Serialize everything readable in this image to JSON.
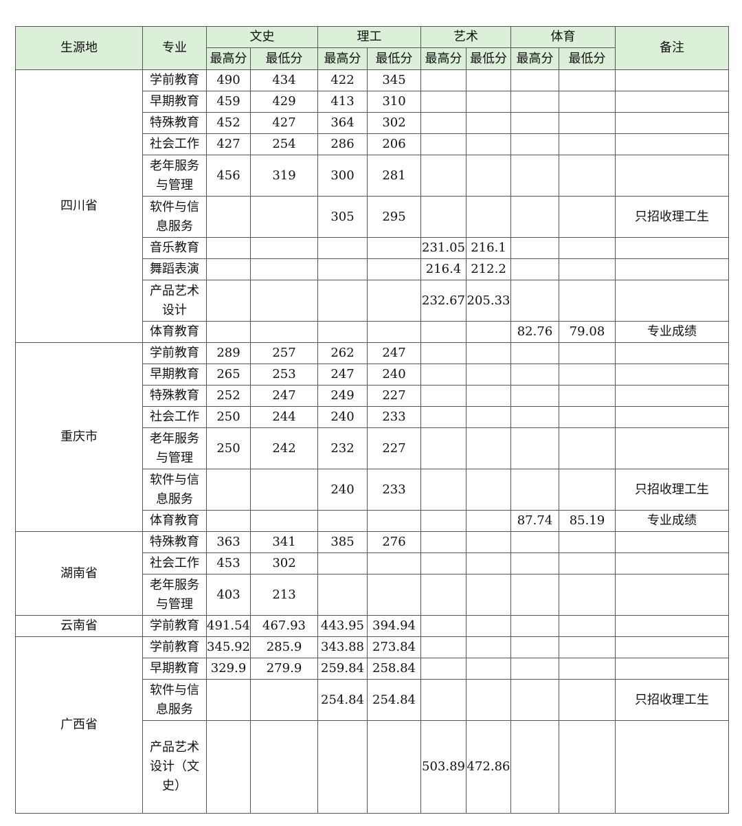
{
  "header": {
    "region": "生源地",
    "major": "专业",
    "groups": [
      "文史",
      "理工",
      "艺术",
      "体育"
    ],
    "note": "备注",
    "sub": [
      "最高分",
      "最低分",
      "最高分",
      "最低分",
      "最高分",
      "最低分",
      "最高分",
      "最低分"
    ]
  },
  "colors": {
    "header_bg": "#dcefd9",
    "border": "#555555"
  },
  "regions": [
    {
      "name": "四川省",
      "rows": [
        {
          "major": "学前教育",
          "scores": [
            "490",
            "434",
            "422",
            "345",
            "",
            "",
            "",
            ""
          ],
          "note": ""
        },
        {
          "major": "早期教育",
          "scores": [
            "459",
            "429",
            "413",
            "310",
            "",
            "",
            "",
            ""
          ],
          "note": ""
        },
        {
          "major": "特殊教育",
          "scores": [
            "452",
            "427",
            "364",
            "302",
            "",
            "",
            "",
            ""
          ],
          "note": ""
        },
        {
          "major": "社会工作",
          "scores": [
            "427",
            "254",
            "286",
            "206",
            "",
            "",
            "",
            ""
          ],
          "note": ""
        },
        {
          "major": "老年服务与管理",
          "scores": [
            "456",
            "319",
            "300",
            "281",
            "",
            "",
            "",
            ""
          ],
          "note": ""
        },
        {
          "major": "软件与信息服务",
          "scores": [
            "",
            "",
            "305",
            "295",
            "",
            "",
            "",
            ""
          ],
          "note": "只招收理工生"
        },
        {
          "major": "音乐教育",
          "scores": [
            "",
            "",
            "",
            "",
            "231.05",
            "216.1",
            "",
            ""
          ],
          "note": ""
        },
        {
          "major": "舞蹈表演",
          "scores": [
            "",
            "",
            "",
            "",
            "216.4",
            "212.2",
            "",
            ""
          ],
          "note": ""
        },
        {
          "major": "产品艺术设计",
          "scores": [
            "",
            "",
            "",
            "",
            "232.67",
            "205.33",
            "",
            ""
          ],
          "note": ""
        },
        {
          "major": "体育教育",
          "scores": [
            "",
            "",
            "",
            "",
            "",
            "",
            "82.76",
            "79.08"
          ],
          "note": "专业成绩"
        }
      ]
    },
    {
      "name": "重庆市",
      "rows": [
        {
          "major": "学前教育",
          "scores": [
            "289",
            "257",
            "262",
            "247",
            "",
            "",
            "",
            ""
          ],
          "note": ""
        },
        {
          "major": "早期教育",
          "scores": [
            "265",
            "253",
            "247",
            "240",
            "",
            "",
            "",
            ""
          ],
          "note": ""
        },
        {
          "major": "特殊教育",
          "scores": [
            "252",
            "247",
            "249",
            "227",
            "",
            "",
            "",
            ""
          ],
          "note": ""
        },
        {
          "major": "社会工作",
          "scores": [
            "250",
            "244",
            "240",
            "233",
            "",
            "",
            "",
            ""
          ],
          "note": ""
        },
        {
          "major": "老年服务与管理",
          "scores": [
            "250",
            "242",
            "232",
            "227",
            "",
            "",
            "",
            ""
          ],
          "note": ""
        },
        {
          "major": "软件与信息服务",
          "scores": [
            "",
            "",
            "240",
            "233",
            "",
            "",
            "",
            ""
          ],
          "note": "只招收理工生"
        },
        {
          "major": "体育教育",
          "scores": [
            "",
            "",
            "",
            "",
            "",
            "",
            "87.74",
            "85.19"
          ],
          "note": "专业成绩"
        }
      ]
    },
    {
      "name": "湖南省",
      "rows": [
        {
          "major": "特殊教育",
          "scores": [
            "363",
            "341",
            "385",
            "276",
            "",
            "",
            "",
            ""
          ],
          "note": ""
        },
        {
          "major": "社会工作",
          "scores": [
            "453",
            "302",
            "",
            "",
            "",
            "",
            "",
            ""
          ],
          "note": ""
        },
        {
          "major": "老年服务与管理",
          "scores": [
            "403",
            "213",
            "",
            "",
            "",
            "",
            "",
            ""
          ],
          "note": ""
        }
      ]
    },
    {
      "name": "云南省",
      "rows": [
        {
          "major": "学前教育",
          "scores": [
            "491.54",
            "467.93",
            "443.95",
            "394.94",
            "",
            "",
            "",
            ""
          ],
          "note": ""
        }
      ]
    },
    {
      "name": "广西省",
      "rows": [
        {
          "major": "学前教育",
          "scores": [
            "345.92",
            "285.9",
            "343.88",
            "273.84",
            "",
            "",
            "",
            ""
          ],
          "note": ""
        },
        {
          "major": "早期教育",
          "scores": [
            "329.9",
            "279.9",
            "259.84",
            "258.84",
            "",
            "",
            "",
            ""
          ],
          "note": ""
        },
        {
          "major": "软件与信息服务",
          "scores": [
            "",
            "",
            "254.84",
            "254.84",
            "",
            "",
            "",
            ""
          ],
          "note": "只招收理工生"
        },
        {
          "major": "产品艺术设计（文史）",
          "scores": [
            "",
            "",
            "",
            "",
            "503.89",
            "472.86",
            "",
            ""
          ],
          "note": ""
        }
      ]
    }
  ]
}
